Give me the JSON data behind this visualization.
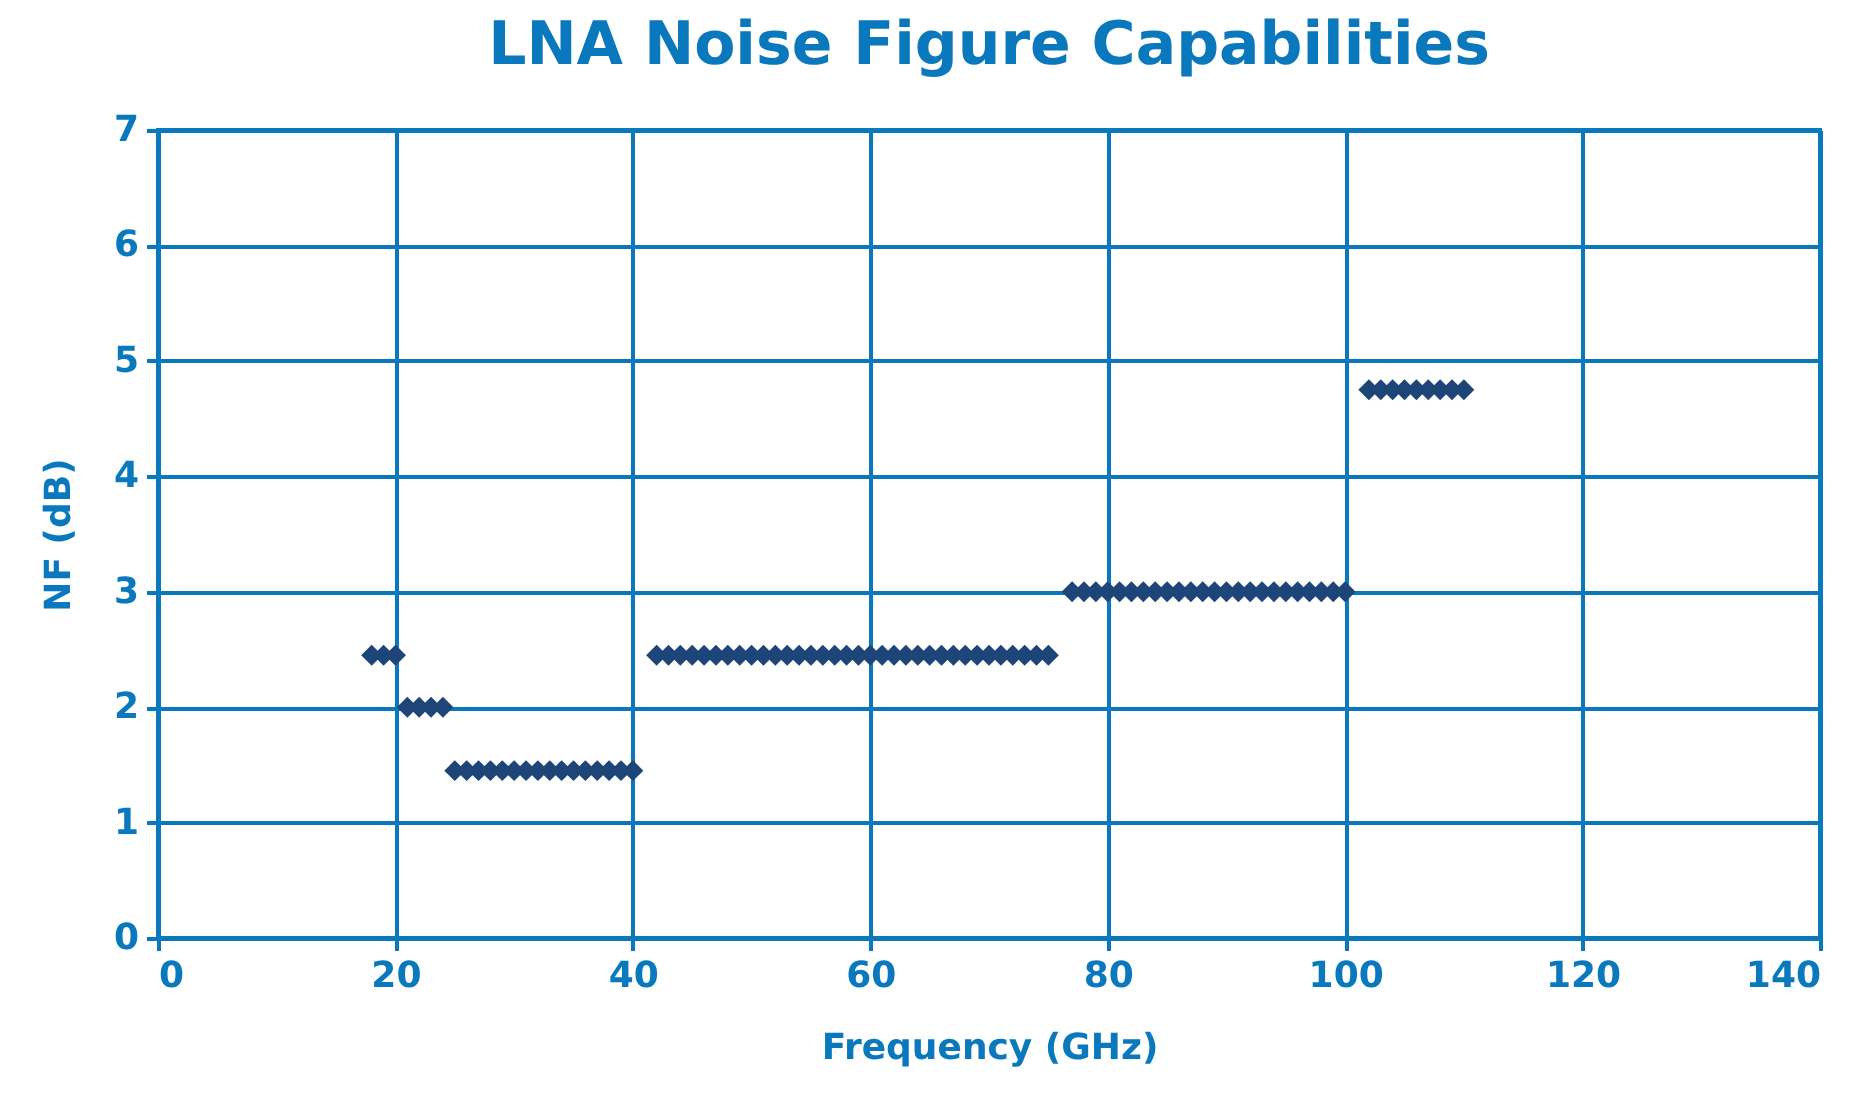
{
  "chart_data": {
    "type": "scatter",
    "title": "LNA Noise Figure Capabilities",
    "xlabel": "Frequency (GHz)",
    "ylabel": "NF (dB)",
    "x": [
      18,
      19,
      20,
      21,
      22,
      23,
      24,
      25,
      26,
      27,
      28,
      29,
      30,
      31,
      32,
      33,
      34,
      35,
      36,
      37,
      38,
      39,
      40,
      42,
      43,
      44,
      45,
      46,
      47,
      48,
      49,
      50,
      51,
      52,
      53,
      54,
      55,
      56,
      57,
      58,
      59,
      60,
      61,
      62,
      63,
      64,
      65,
      66,
      67,
      68,
      69,
      70,
      71,
      72,
      73,
      74,
      75,
      77,
      78,
      79,
      80,
      81,
      82,
      83,
      84,
      85,
      86,
      87,
      88,
      89,
      90,
      91,
      92,
      93,
      94,
      95,
      96,
      97,
      98,
      99,
      100,
      102,
      103,
      104,
      105,
      106,
      107,
      108,
      109,
      110
    ],
    "series": [
      {
        "color": "#1d4577",
        "values": [
          2.45,
          2.45,
          2.45,
          2,
          2,
          2,
          2,
          1.45,
          1.45,
          1.45,
          1.45,
          1.45,
          1.45,
          1.45,
          1.45,
          1.45,
          1.45,
          1.45,
          1.45,
          1.45,
          1.45,
          1.45,
          1.45,
          2.45,
          2.45,
          2.45,
          2.45,
          2.45,
          2.45,
          2.45,
          2.45,
          2.45,
          2.45,
          2.45,
          2.45,
          2.45,
          2.45,
          2.45,
          2.45,
          2.45,
          2.45,
          2.45,
          2.45,
          2.45,
          2.45,
          2.45,
          2.45,
          2.45,
          2.45,
          2.45,
          2.45,
          2.45,
          2.45,
          2.45,
          2.45,
          2.45,
          2.45,
          3,
          3,
          3,
          3,
          3,
          3,
          3,
          3,
          3,
          3,
          3,
          3,
          3,
          3,
          3,
          3,
          3,
          3,
          3,
          3,
          3,
          3,
          3,
          3,
          4.75,
          4.75,
          4.75,
          4.75,
          4.75,
          4.75,
          4.75,
          4.75,
          4.75
        ]
      }
    ],
    "xlim": [
      0,
      140
    ],
    "xticks": [
      0,
      20,
      40,
      60,
      80,
      100,
      120,
      140
    ],
    "ylim": [
      0,
      7
    ],
    "yticks": [
      0,
      1,
      2,
      3,
      4,
      5,
      6,
      7
    ],
    "grid": true,
    "marker": "diamond"
  }
}
